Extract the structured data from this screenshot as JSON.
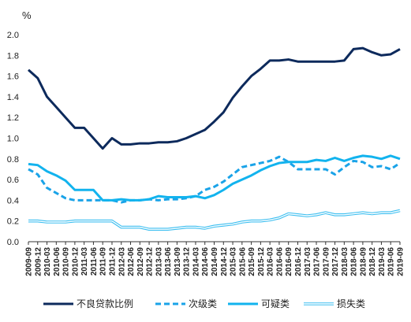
{
  "chart_data": {
    "type": "line",
    "unit_label": "%",
    "ylim": [
      0.0,
      2.0
    ],
    "yticks": [
      "0.0",
      "0.2",
      "0.4",
      "0.6",
      "0.8",
      "1.0",
      "1.2",
      "1.4",
      "1.6",
      "1.8",
      "2.0"
    ],
    "grid": false,
    "legend_position": "bottom",
    "x": [
      "2009-09",
      "2009-12",
      "2010-03",
      "2010-06",
      "2010-09",
      "2010-12",
      "2011-03",
      "2011-06",
      "2011-09",
      "2011-12",
      "2012-03",
      "2012-06",
      "2012-09",
      "2012-12",
      "2013-03",
      "2013-06",
      "2013-09",
      "2013-12",
      "2014-03",
      "2014-06",
      "2014-09",
      "2014-12",
      "2015-03",
      "2015-06",
      "2015-09",
      "2015-12",
      "2016-03",
      "2016-06",
      "2016-09",
      "2016-12",
      "2017-03",
      "2017-06",
      "2017-09",
      "2017-12",
      "2018-03",
      "2018-06",
      "2018-09",
      "2018-12",
      "2019-03",
      "2019-06",
      "2019-09"
    ],
    "series": [
      {
        "name": "不良贷款比例",
        "color": "#0d2a5c",
        "style": "solid",
        "values": [
          1.66,
          1.58,
          1.4,
          1.3,
          1.2,
          1.1,
          1.1,
          1.0,
          0.9,
          1.0,
          0.94,
          0.94,
          0.95,
          0.95,
          0.96,
          0.96,
          0.97,
          1.0,
          1.04,
          1.08,
          1.16,
          1.25,
          1.39,
          1.5,
          1.6,
          1.67,
          1.75,
          1.75,
          1.76,
          1.74,
          1.74,
          1.74,
          1.74,
          1.74,
          1.75,
          1.86,
          1.87,
          1.83,
          1.8,
          1.81,
          1.86
        ]
      },
      {
        "name": "次级类",
        "color": "#1aa3e8",
        "style": "dashed",
        "values": [
          0.7,
          0.65,
          0.52,
          0.47,
          0.42,
          0.4,
          0.4,
          0.4,
          0.4,
          0.4,
          0.38,
          0.4,
          0.4,
          0.41,
          0.4,
          0.41,
          0.41,
          0.42,
          0.44,
          0.5,
          0.53,
          0.58,
          0.65,
          0.72,
          0.74,
          0.76,
          0.78,
          0.82,
          0.77,
          0.7,
          0.7,
          0.7,
          0.7,
          0.65,
          0.72,
          0.78,
          0.77,
          0.72,
          0.73,
          0.7,
          0.76
        ]
      },
      {
        "name": "可疑类",
        "color": "#12b3ee",
        "style": "solid",
        "values": [
          0.75,
          0.74,
          0.68,
          0.64,
          0.59,
          0.5,
          0.5,
          0.5,
          0.4,
          0.4,
          0.41,
          0.4,
          0.4,
          0.41,
          0.44,
          0.43,
          0.43,
          0.43,
          0.44,
          0.42,
          0.45,
          0.5,
          0.56,
          0.6,
          0.64,
          0.69,
          0.73,
          0.76,
          0.77,
          0.77,
          0.77,
          0.79,
          0.78,
          0.81,
          0.78,
          0.81,
          0.83,
          0.82,
          0.8,
          0.83,
          0.8
        ]
      },
      {
        "name": "损失类",
        "color": "#3bbef0",
        "style": "double",
        "values": [
          0.2,
          0.2,
          0.19,
          0.19,
          0.19,
          0.2,
          0.2,
          0.2,
          0.2,
          0.2,
          0.14,
          0.14,
          0.14,
          0.12,
          0.12,
          0.12,
          0.13,
          0.14,
          0.14,
          0.13,
          0.15,
          0.16,
          0.17,
          0.19,
          0.2,
          0.2,
          0.21,
          0.23,
          0.27,
          0.26,
          0.25,
          0.26,
          0.28,
          0.26,
          0.26,
          0.27,
          0.28,
          0.27,
          0.28,
          0.28,
          0.3
        ]
      }
    ]
  }
}
